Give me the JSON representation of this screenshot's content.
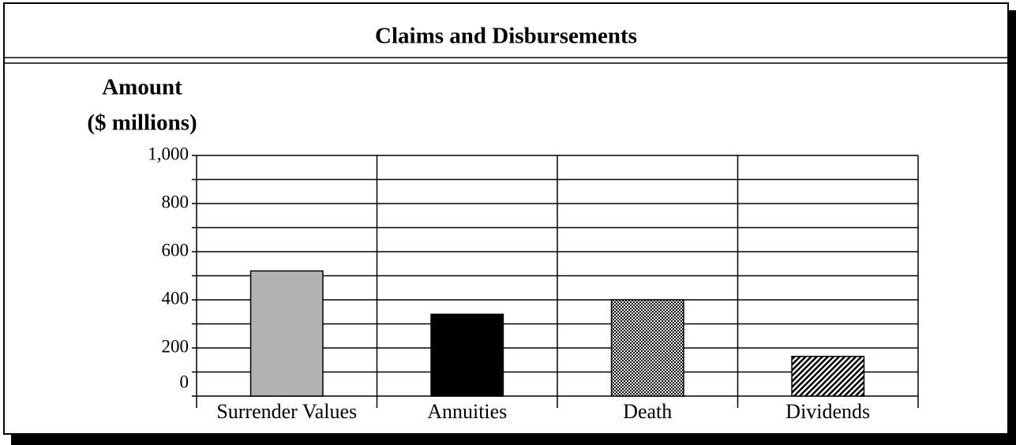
{
  "chart_data": {
    "type": "bar",
    "title": "Claims and Disbursements",
    "ylabel": [
      "Amount",
      "($ millions)"
    ],
    "categories": [
      "Surrender Values",
      "Annuities",
      "Death",
      "Dividends"
    ],
    "values": [
      520,
      340,
      400,
      165
    ],
    "colors": [
      "#b2b2b2",
      "#000000",
      "#707070",
      "#606060"
    ],
    "patterns": [
      "solid",
      "solid",
      "dots",
      "hatch"
    ],
    "ylim": [
      0,
      1000
    ],
    "yticks": [
      0,
      200,
      400,
      600,
      800,
      {
        "value": 1000,
        "label": "1,000"
      }
    ],
    "minor_yticks": [
      100,
      300,
      500,
      700,
      900
    ],
    "grid": true
  }
}
